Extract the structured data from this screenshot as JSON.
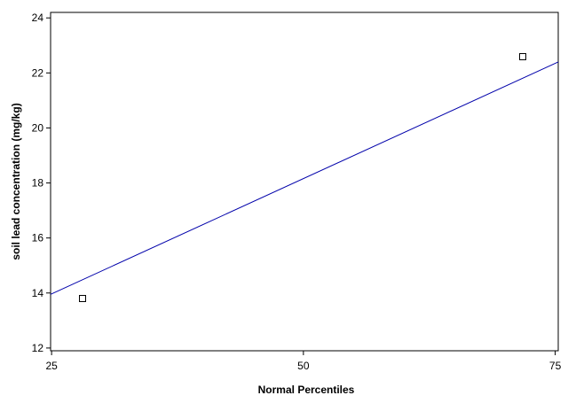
{
  "chart_data": {
    "type": "scatter",
    "title": "",
    "xlabel": "Normal Percentiles",
    "ylabel": "soil lead concentration (mg/kg)",
    "xlim": [
      24.9,
      75.3
    ],
    "ylim": [
      11.9,
      24.2
    ],
    "xticks": [
      25,
      50,
      75
    ],
    "yticks": [
      12,
      14,
      16,
      18,
      20,
      22,
      24
    ],
    "grid": false,
    "legend": "none",
    "series": [
      {
        "marker": "open-square",
        "color": "#000000",
        "points": [
          {
            "x": 28.1,
            "y": 13.8
          },
          {
            "x": 71.8,
            "y": 22.6
          }
        ]
      }
    ],
    "fit_line": {
      "color": "#0000aa",
      "x": [
        24.9,
        75.3
      ],
      "y": [
        13.95,
        22.4
      ]
    }
  }
}
